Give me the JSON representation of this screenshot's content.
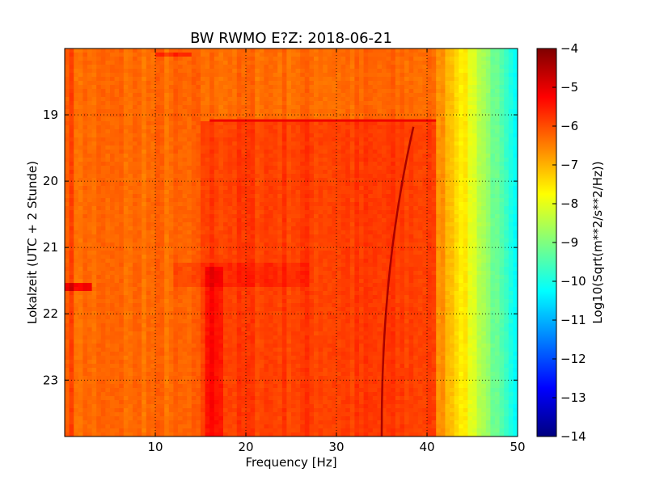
{
  "chart_data": {
    "type": "heatmap",
    "title": "BW RWMO E?Z: 2018-06-21",
    "xlabel": "Frequency [Hz]",
    "ylabel": "Lokalzeit (UTC + 2 Stunde)",
    "xlim": [
      0,
      50
    ],
    "ylim_hours": [
      18.0,
      23.85
    ],
    "x_ticks": [
      10,
      20,
      30,
      40,
      50
    ],
    "y_ticks": [
      19,
      20,
      21,
      22,
      23
    ],
    "grid": true,
    "colormap": "jet",
    "colorbar": {
      "label": "Log10(Sqrt(m**2/s**2/Hz))",
      "range": [
        -14,
        -4
      ],
      "ticks": [
        -4,
        -5,
        -6,
        -7,
        -8,
        -9,
        -10,
        -11,
        -12,
        -13,
        -14
      ]
    },
    "colormap_stops": [
      "#00007f",
      "#0000ff",
      "#007fff",
      "#00ffff",
      "#7fff7f",
      "#ffff00",
      "#ff7f00",
      "#ff0000",
      "#7f0000"
    ],
    "features": {
      "background_level": -6.3,
      "rolloff_start_hz": 40,
      "rolloff_end_hz": 50,
      "rolloff_end_level": -10.5,
      "elevated_after_hour": 19.08,
      "drifting_line_hz_at_start": 38.5,
      "drifting_line_hz_at_end": 35.0,
      "burst_hour": 21.58,
      "burst_hz_range": [
        0,
        3
      ]
    }
  }
}
